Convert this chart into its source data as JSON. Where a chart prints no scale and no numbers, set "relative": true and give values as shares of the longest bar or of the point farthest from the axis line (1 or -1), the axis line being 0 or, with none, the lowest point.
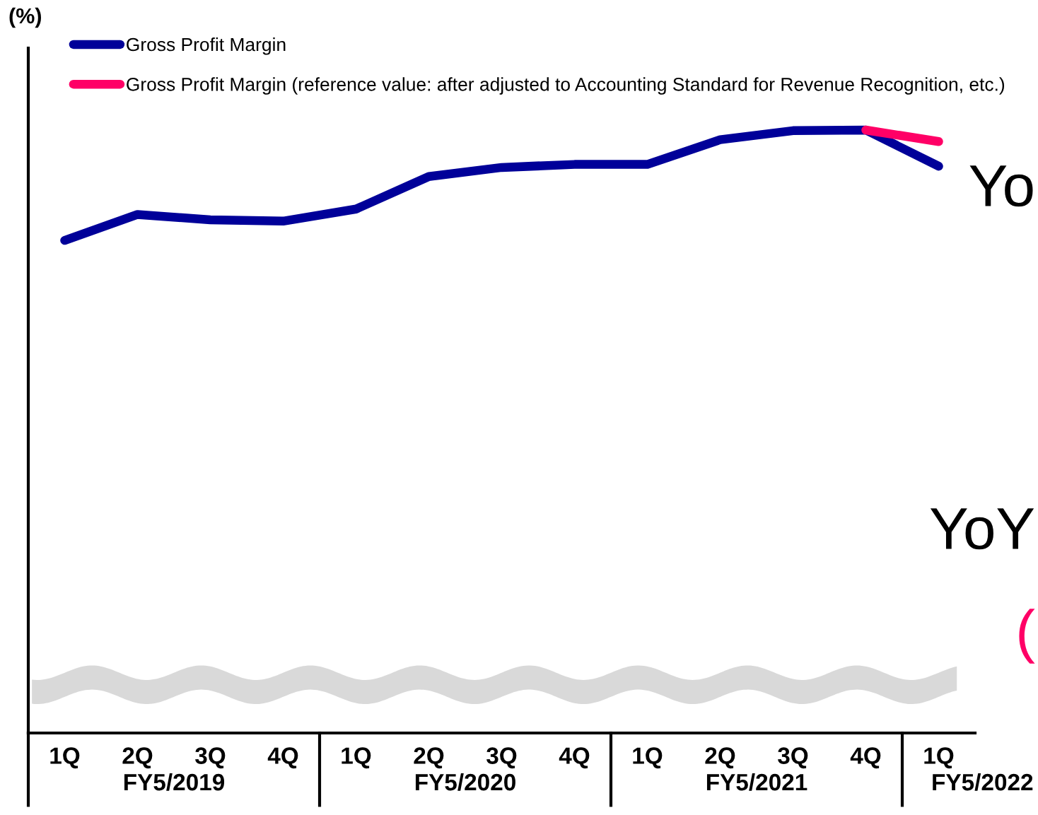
{
  "chart_data": {
    "type": "line",
    "relative": true,
    "ylabel": "(%)",
    "categories": [
      "1Q",
      "2Q",
      "3Q",
      "4Q",
      "1Q",
      "2Q",
      "3Q",
      "4Q",
      "1Q",
      "2Q",
      "3Q",
      "4Q",
      "1Q"
    ],
    "series": [
      {
        "name": "Gross Profit Margin",
        "color": "#000099",
        "values": [
          0.817,
          0.86,
          0.851,
          0.849,
          0.869,
          0.923,
          0.938,
          0.943,
          0.943,
          0.984,
          0.999,
          1.0,
          0.94
        ]
      },
      {
        "name": "Gross Profit Margin (reference value: after adjusted to Accounting Standard for Revenue Recognition, etc.)",
        "color": "#ff0066",
        "values": [
          null,
          null,
          null,
          null,
          null,
          null,
          null,
          null,
          null,
          null,
          null,
          1.0,
          0.981
        ]
      }
    ],
    "annotations": [
      "FY5/2019",
      "FY5/2020",
      "FY5/2021",
      "FY5/2022",
      "Yo",
      "YoY",
      "("
    ],
    "legend": "top left",
    "grid": false,
    "line_style": "solid"
  }
}
